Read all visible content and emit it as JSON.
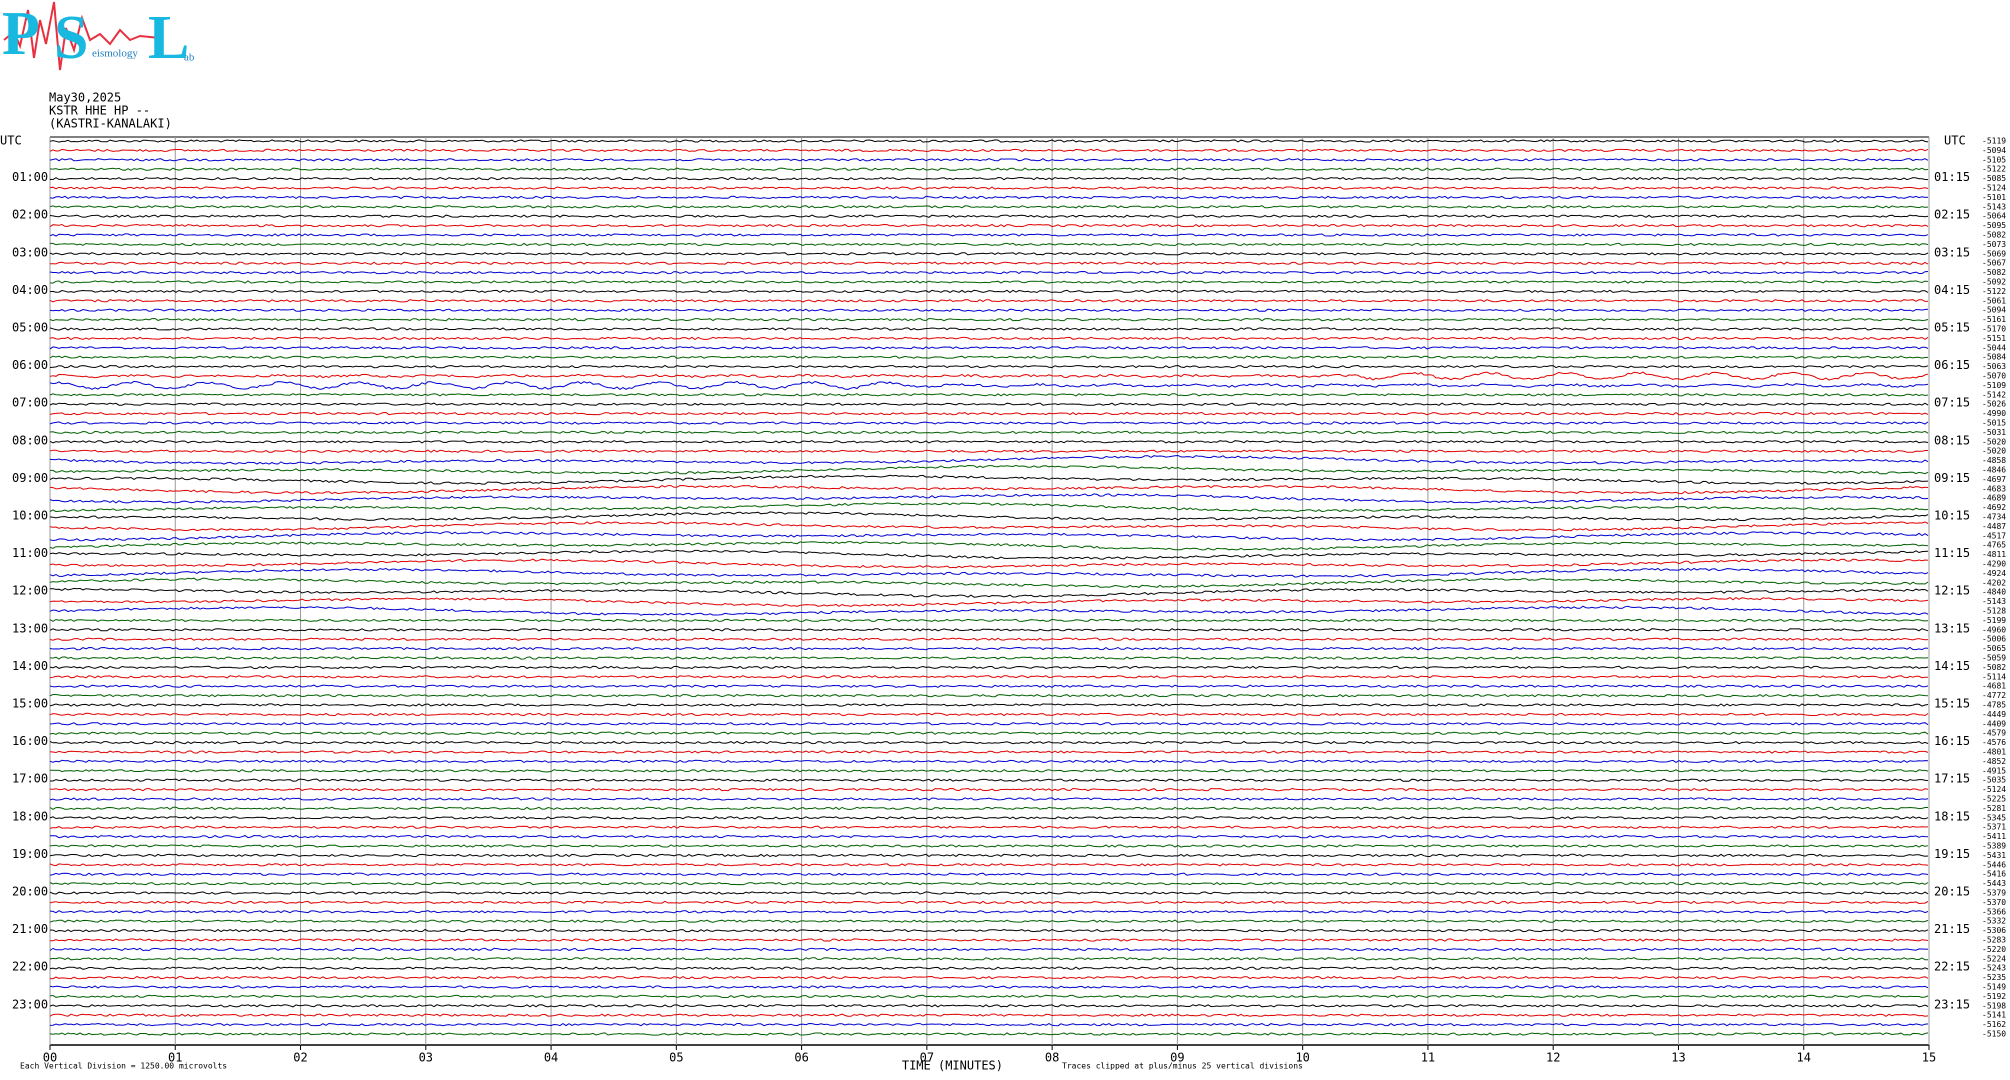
{
  "logo": {
    "letters": [
      "P",
      "S",
      "L"
    ],
    "small_texts": [
      "eismology",
      "ab"
    ]
  },
  "chart_data": {
    "type": "helicorder",
    "title_lines": [
      "May30,2025",
      "KSTR HHE HP --",
      "(KASTRI-KANALAKI)"
    ],
    "left_labels": [
      "UTC",
      "01:00",
      "02:00",
      "03:00",
      "04:00",
      "05:00",
      "06:00",
      "07:00",
      "08:00",
      "09:00",
      "10:00",
      "11:00",
      "12:00",
      "13:00",
      "14:00",
      "15:00",
      "16:00",
      "17:00",
      "18:00",
      "19:00",
      "20:00",
      "21:00",
      "22:00",
      "23:00"
    ],
    "right_labels": [
      "UTC",
      "01:15",
      "02:15",
      "03:15",
      "04:15",
      "05:15",
      "06:15",
      "07:15",
      "08:15",
      "09:15",
      "10:15",
      "11:15",
      "12:15",
      "13:15",
      "14:15",
      "15:15",
      "16:15",
      "17:15",
      "18:15",
      "19:15",
      "20:15",
      "21:15",
      "22:15",
      "23:15"
    ],
    "values": [
      -5119,
      -5094,
      -5105,
      -5122,
      -5085,
      -5124,
      -5101,
      -5143,
      -5064,
      -5095,
      -5082,
      -5073,
      -5069,
      -5067,
      -5082,
      -5092,
      -5122,
      -5061,
      -5094,
      -5161,
      -5170,
      -5151,
      -5044,
      -5084,
      -5063,
      -5070,
      -5109,
      -5142,
      -5026,
      -4990,
      -5015,
      -5031,
      -5020,
      -5020,
      -4858,
      -4846,
      -4697,
      -4683,
      -4689,
      -4692,
      -4734,
      -4487,
      -4517,
      -4765,
      -4811,
      -4290,
      -4924,
      -4202,
      -4840,
      -5143,
      -5128,
      -5199,
      -4960,
      -5006,
      -5065,
      -5059,
      -5082,
      -5114,
      -4681,
      -4772,
      -4785,
      -4449,
      -4409,
      -4579,
      -4576,
      -4801,
      -4852,
      -4915,
      -5035,
      -5124,
      -5225,
      -5281,
      -5345,
      -5371,
      -5411,
      -5389,
      -5431,
      -5446,
      -5416,
      -5443,
      -5379,
      -5370,
      -5366,
      -5332,
      -5306,
      -5283,
      -5220,
      -5224,
      -5243,
      -5235,
      -5149,
      -5192,
      -5198,
      -5141,
      -5162,
      -5150
    ],
    "colors": [
      "#000000",
      "#e00000",
      "#0000d0",
      "#006000"
    ],
    "xlim": [
      0,
      15
    ],
    "xticks": [
      {
        "value": 0,
        "label": "00"
      },
      {
        "value": 1,
        "label": "01"
      },
      {
        "value": 2,
        "label": "02"
      },
      {
        "value": 3,
        "label": "03"
      },
      {
        "value": 4,
        "label": "04"
      },
      {
        "value": 5,
        "label": "05"
      },
      {
        "value": 6,
        "label": "06"
      },
      {
        "value": 7,
        "label": "07"
      },
      {
        "value": 8,
        "label": "08"
      },
      {
        "value": 9,
        "label": "09"
      },
      10,
      11,
      12,
      13,
      14,
      15
    ],
    "xlabel": "TIME (MINUTES)",
    "note_left": "Each Vertical Division = 1250.00 microvolts",
    "note_right": "Traces clipped at plus/minus 25 vertical divisions",
    "grid": true
  }
}
